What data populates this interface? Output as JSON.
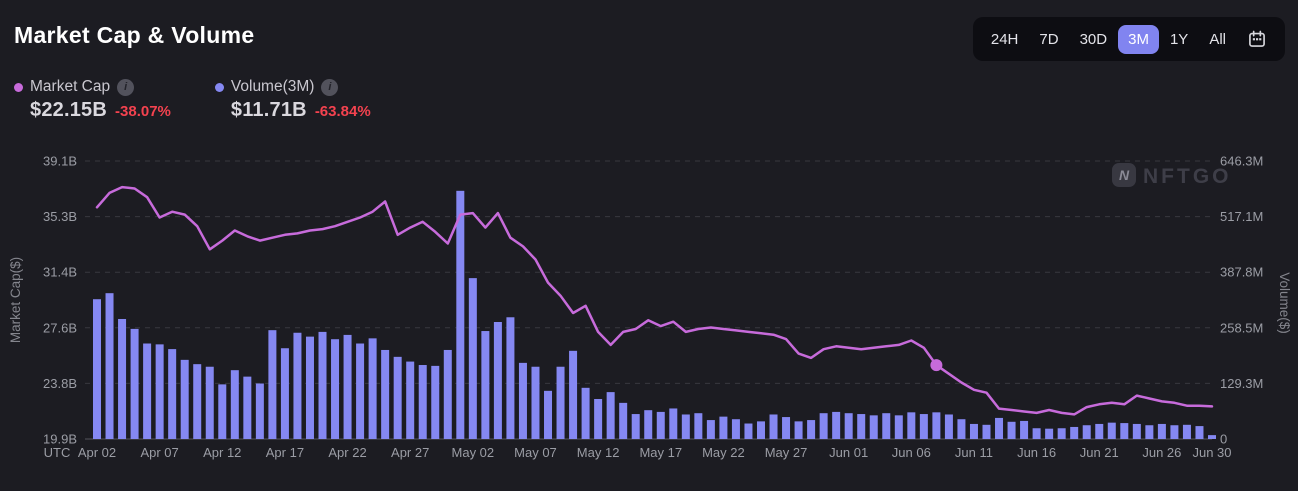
{
  "header": {
    "title": "Market Cap & Volume"
  },
  "range_selector": {
    "options": [
      "24H",
      "7D",
      "30D",
      "3M",
      "1Y",
      "All"
    ],
    "selected": "3M"
  },
  "legend": [
    {
      "label": "Market Cap",
      "value": "$22.15B",
      "change": "-38.07%",
      "color": "#c76bdb"
    },
    {
      "label": "Volume(3M)",
      "value": "$11.71B",
      "change": "-63.84%",
      "color": "#8588f2"
    }
  ],
  "icons": {
    "info_glyph": "i"
  },
  "watermark": {
    "brand": "NFTGO",
    "logo_letter": "N"
  },
  "colors": {
    "background": "#1c1c22",
    "selector_panel": "#0d0d12",
    "selected_range_bg": "#8184f0",
    "negative": "#f4424f",
    "grid": "#38383f",
    "tick_text": "#9b9da5",
    "watermark_text": "#3e3e48"
  },
  "chart_data": {
    "type": "line+bar",
    "title": "Market Cap & Volume",
    "grid": "horizontal-dashed",
    "legend_position": "top-left",
    "x_axis": {
      "utc_label": "UTC",
      "ticks": [
        {
          "label": "Apr 02",
          "day": 0
        },
        {
          "label": "Apr 07",
          "day": 5
        },
        {
          "label": "Apr 12",
          "day": 10
        },
        {
          "label": "Apr 17",
          "day": 15
        },
        {
          "label": "Apr 22",
          "day": 20
        },
        {
          "label": "Apr 27",
          "day": 25
        },
        {
          "label": "May 02",
          "day": 30
        },
        {
          "label": "May 07",
          "day": 35
        },
        {
          "label": "May 12",
          "day": 40
        },
        {
          "label": "May 17",
          "day": 45
        },
        {
          "label": "May 22",
          "day": 50
        },
        {
          "label": "May 27",
          "day": 55
        },
        {
          "label": "Jun 01",
          "day": 60
        },
        {
          "label": "Jun 06",
          "day": 65
        },
        {
          "label": "Jun 11",
          "day": 70
        },
        {
          "label": "Jun 16",
          "day": 75
        },
        {
          "label": "Jun 21",
          "day": 80
        },
        {
          "label": "Jun 26",
          "day": 85
        },
        {
          "label": "Jun 30",
          "day": 89
        }
      ]
    },
    "left_axis": {
      "label": "Market Cap($)",
      "unit": "B",
      "min": 19.9,
      "max": 39.1,
      "ticks": [
        "39.1B",
        "35.3B",
        "31.4B",
        "27.6B",
        "23.8B",
        "19.9B"
      ]
    },
    "right_axis": {
      "label": "Volume($)",
      "unit": "M",
      "min": 0,
      "max": 646.3,
      "ticks": [
        "646.3M",
        "517.1M",
        "387.8M",
        "258.5M",
        "129.3M",
        "0"
      ]
    },
    "dates": [
      "Apr 02",
      "Apr 03",
      "Apr 04",
      "Apr 05",
      "Apr 06",
      "Apr 07",
      "Apr 08",
      "Apr 09",
      "Apr 10",
      "Apr 11",
      "Apr 12",
      "Apr 13",
      "Apr 14",
      "Apr 15",
      "Apr 16",
      "Apr 17",
      "Apr 18",
      "Apr 19",
      "Apr 20",
      "Apr 21",
      "Apr 22",
      "Apr 23",
      "Apr 24",
      "Apr 25",
      "Apr 26",
      "Apr 27",
      "Apr 28",
      "Apr 29",
      "Apr 30",
      "May 01",
      "May 02",
      "May 03",
      "May 04",
      "May 05",
      "May 06",
      "May 07",
      "May 08",
      "May 09",
      "May 10",
      "May 11",
      "May 12",
      "May 13",
      "May 14",
      "May 15",
      "May 16",
      "May 17",
      "May 18",
      "May 19",
      "May 20",
      "May 21",
      "May 22",
      "May 23",
      "May 24",
      "May 25",
      "May 26",
      "May 27",
      "May 28",
      "May 29",
      "May 30",
      "May 31",
      "Jun 01",
      "Jun 02",
      "Jun 03",
      "Jun 04",
      "Jun 05",
      "Jun 06",
      "Jun 07",
      "Jun 08",
      "Jun 09",
      "Jun 10",
      "Jun 11",
      "Jun 12",
      "Jun 13",
      "Jun 14",
      "Jun 15",
      "Jun 16",
      "Jun 17",
      "Jun 18",
      "Jun 19",
      "Jun 20",
      "Jun 21",
      "Jun 22",
      "Jun 23",
      "Jun 24",
      "Jun 25",
      "Jun 26",
      "Jun 27",
      "Jun 28",
      "Jun 29",
      "Jun 30"
    ],
    "series": [
      {
        "name": "Market Cap",
        "type": "line",
        "unit": "$B",
        "color": "#c76bdb",
        "highlight_index": 67,
        "values": [
          35.9,
          36.9,
          37.3,
          37.2,
          36.6,
          35.2,
          35.6,
          35.4,
          34.6,
          33.0,
          33.6,
          34.3,
          33.9,
          33.6,
          33.8,
          34.0,
          34.1,
          34.3,
          34.4,
          34.6,
          34.9,
          35.2,
          35.6,
          36.3,
          34.0,
          34.5,
          34.9,
          34.2,
          33.4,
          35.4,
          35.5,
          34.5,
          35.5,
          33.8,
          33.2,
          32.3,
          30.7,
          29.8,
          28.6,
          29.1,
          27.3,
          26.4,
          27.3,
          27.5,
          28.1,
          27.7,
          28.0,
          27.3,
          27.5,
          27.6,
          27.5,
          27.4,
          27.3,
          27.2,
          27.1,
          26.8,
          25.8,
          25.5,
          26.1,
          26.3,
          26.2,
          26.1,
          26.2,
          26.3,
          26.4,
          26.7,
          26.2,
          25.0,
          24.4,
          23.8,
          23.3,
          23.1,
          22.0,
          21.9,
          21.8,
          21.7,
          21.9,
          21.7,
          21.6,
          22.1,
          22.3,
          22.4,
          22.3,
          22.9,
          22.7,
          22.5,
          22.4,
          22.2,
          22.2,
          22.15
        ]
      },
      {
        "name": "Volume",
        "type": "bar",
        "unit": "$M",
        "color": "#8588f2",
        "values": [
          325,
          339,
          279,
          256,
          222,
          220,
          209,
          184,
          174,
          168,
          127,
          160,
          145,
          129,
          253,
          211,
          247,
          238,
          249,
          232,
          242,
          222,
          234,
          207,
          191,
          180,
          172,
          170,
          207,
          577,
          374,
          251,
          272,
          283,
          177,
          168,
          112,
          168,
          205,
          119,
          93,
          109,
          84,
          58,
          67,
          63,
          71,
          57,
          60,
          44,
          52,
          46,
          36,
          41,
          57,
          51,
          41,
          44,
          60,
          63,
          60,
          58,
          55,
          60,
          55,
          62,
          58,
          62,
          57,
          46,
          35,
          33,
          49,
          40,
          42,
          25,
          24,
          25,
          28,
          32,
          35,
          38,
          37,
          35,
          32,
          35,
          32,
          33,
          30,
          9
        ]
      }
    ]
  }
}
